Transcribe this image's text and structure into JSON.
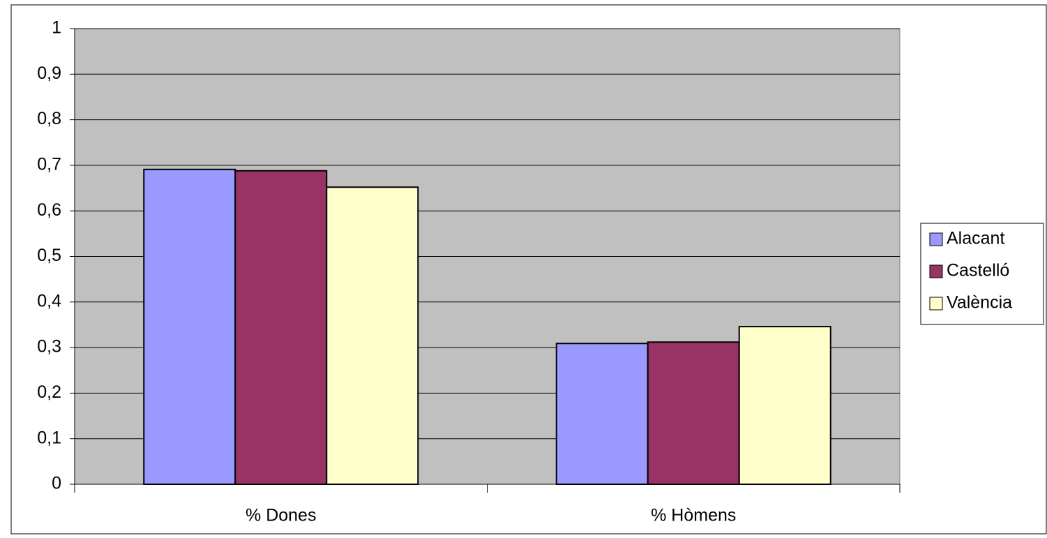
{
  "chart_data": {
    "type": "bar",
    "categories": [
      "% Dones",
      "% Hòmens"
    ],
    "series": [
      {
        "name": "Alacant",
        "color": "#9999ff",
        "values": [
          0.691,
          0.309
        ]
      },
      {
        "name": "Castelló",
        "color": "#993366",
        "values": [
          0.688,
          0.312
        ]
      },
      {
        "name": "València",
        "color": "#ffffcc",
        "values": [
          0.652,
          0.346
        ]
      }
    ],
    "ylim": [
      0,
      1
    ],
    "yticks": [
      0,
      {
        "value": 0.1,
        "label": "0,1"
      },
      {
        "value": 0.2,
        "label": "0,2"
      },
      {
        "value": 0.3,
        "label": "0,3"
      },
      {
        "value": 0.4,
        "label": "0,4"
      },
      {
        "value": 0.5,
        "label": "0,5"
      },
      {
        "value": 0.6,
        "label": "0,6"
      },
      {
        "value": 0.7,
        "label": "0,7"
      },
      {
        "value": 0.8,
        "label": "0,8"
      },
      {
        "value": 0.9,
        "label": "0,9"
      },
      1
    ],
    "grid": true,
    "legend": "right"
  }
}
